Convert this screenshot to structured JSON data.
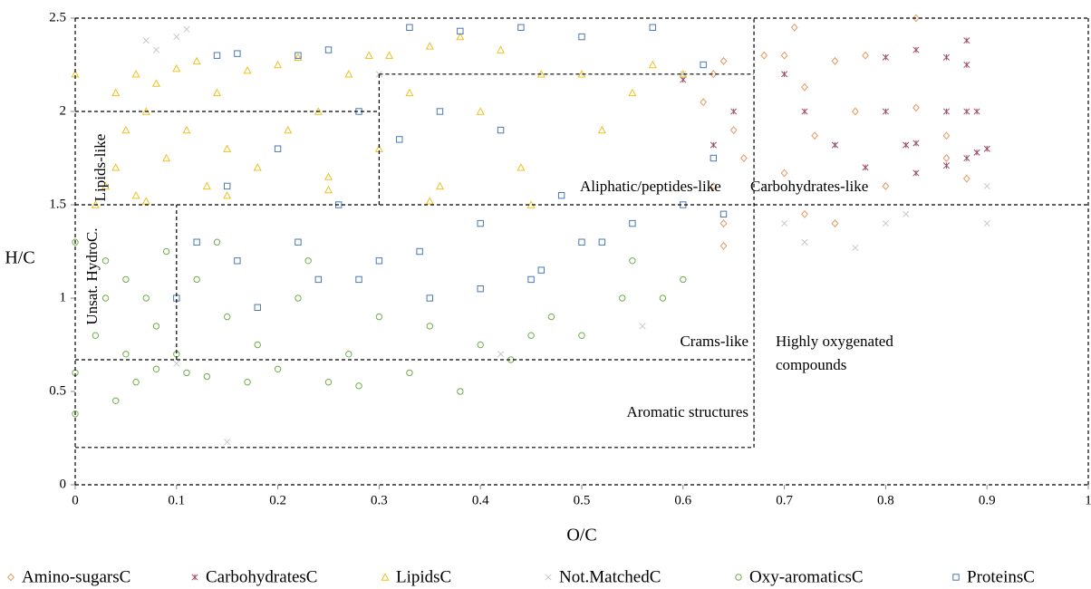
{
  "chart_data": {
    "type": "scatter",
    "xlabel": "O/C",
    "ylabel": "H/C",
    "xlim": [
      0,
      1
    ],
    "ylim": [
      0,
      2.5
    ],
    "xticks": [
      0,
      0.1,
      0.2,
      0.3,
      0.4,
      0.5,
      0.6,
      0.7,
      0.8,
      0.9,
      1
    ],
    "yticks": [
      0,
      0.5,
      1,
      1.5,
      2,
      2.5
    ],
    "region_lines": [
      [
        0,
        0,
        1,
        0
      ],
      [
        0,
        2.5,
        1,
        2.5
      ],
      [
        0,
        0,
        0,
        2.5
      ],
      [
        1,
        0,
        1,
        2.5
      ],
      [
        0,
        1.5,
        1,
        1.5
      ],
      [
        0,
        2,
        0.3,
        2
      ],
      [
        0.3,
        2.2,
        0.67,
        2.2
      ],
      [
        0.3,
        1.5,
        0.3,
        2.2
      ],
      [
        0.67,
        0.2,
        0.67,
        2.5
      ],
      [
        0,
        0.67,
        0.67,
        0.67
      ],
      [
        0,
        0.2,
        0.67,
        0.2
      ],
      [
        0.1,
        0.67,
        0.1,
        1.5
      ]
    ],
    "annotations": [
      "Lipids-like",
      "Aliphatic/peptides-like",
      "Carbohydrates-like",
      "Unsat. HydroC.",
      "Crams-like",
      "Highly oxygenated",
      "compounds",
      "Aromatic structures"
    ],
    "series": [
      {
        "name": "Amino-sugarsC",
        "color": "#e59a63",
        "marker": "diamond",
        "x": [
          0.63,
          0.64,
          0.62,
          0.65,
          0.63,
          0.64,
          0.66,
          0.68,
          0.7,
          0.71,
          0.72,
          0.73,
          0.75,
          0.77,
          0.78,
          0.8,
          0.83,
          0.83,
          0.86,
          0.86,
          0.88,
          0.72,
          0.75,
          0.64,
          0.7
        ],
        "values": [
          2.2,
          2.27,
          2.05,
          1.9,
          1.6,
          1.4,
          1.75,
          2.3,
          2.3,
          2.45,
          2.13,
          1.87,
          2.27,
          2.0,
          2.3,
          1.6,
          2.5,
          2.02,
          1.87,
          1.75,
          1.64,
          1.45,
          1.4,
          1.28,
          1.67
        ]
      },
      {
        "name": "CarbohydratesC",
        "color": "#9b4d6e",
        "marker": "star",
        "x": [
          0.63,
          0.65,
          0.7,
          0.72,
          0.75,
          0.78,
          0.8,
          0.8,
          0.82,
          0.83,
          0.83,
          0.86,
          0.86,
          0.86,
          0.88,
          0.88,
          0.88,
          0.88,
          0.89,
          0.89,
          0.9,
          0.83,
          0.6
        ],
        "values": [
          1.82,
          2.0,
          2.2,
          2.0,
          1.82,
          1.7,
          2.29,
          2.0,
          1.82,
          2.33,
          1.83,
          2.29,
          2.0,
          1.71,
          2.38,
          2.25,
          2.0,
          1.75,
          2.0,
          1.78,
          1.8,
          1.67,
          2.17
        ]
      },
      {
        "name": "LipidsC",
        "color": "#f0c020",
        "marker": "triangle",
        "x": [
          0,
          0.02,
          0.03,
          0.04,
          0.04,
          0.05,
          0.06,
          0.06,
          0.07,
          0.08,
          0.09,
          0.1,
          0.11,
          0.12,
          0.13,
          0.14,
          0.15,
          0.17,
          0.18,
          0.2,
          0.21,
          0.22,
          0.24,
          0.25,
          0.27,
          0.29,
          0.3,
          0.31,
          0.33,
          0.35,
          0.36,
          0.38,
          0.4,
          0.42,
          0.44,
          0.46,
          0.5,
          0.52,
          0.55,
          0.57,
          0.6,
          0.07,
          0.15,
          0.25,
          0.35,
          0.45
        ],
        "values": [
          2.2,
          1.5,
          1.6,
          1.7,
          2.1,
          1.9,
          2.2,
          1.55,
          2.0,
          2.15,
          1.75,
          2.23,
          1.9,
          2.27,
          1.6,
          2.1,
          1.8,
          2.22,
          1.7,
          2.25,
          1.9,
          2.29,
          2.0,
          1.65,
          2.2,
          2.3,
          1.8,
          2.3,
          2.1,
          2.35,
          1.6,
          2.4,
          2.0,
          2.33,
          1.7,
          2.2,
          2.2,
          1.9,
          2.1,
          2.25,
          2.2,
          1.52,
          1.55,
          1.58,
          1.52,
          1.5
        ]
      },
      {
        "name": "Not.MatchedC",
        "color": "#c8c8c8",
        "marker": "cross",
        "x": [
          0.07,
          0.08,
          0.1,
          0.11,
          0.15,
          0.56,
          0.6,
          0.68,
          0.7,
          0.72,
          0.77,
          0.8,
          0.82,
          0.9,
          0.9,
          0.1,
          0.42,
          0.3
        ],
        "values": [
          2.38,
          2.33,
          2.4,
          2.44,
          0.23,
          0.85,
          2.2,
          1.6,
          1.4,
          1.3,
          1.27,
          1.4,
          1.45,
          1.4,
          1.6,
          0.65,
          0.7,
          2.2
        ]
      },
      {
        "name": "Oxy-aromaticsC",
        "color": "#70ad47",
        "marker": "circle",
        "x": [
          0,
          0,
          0,
          0.02,
          0.03,
          0.04,
          0.05,
          0.05,
          0.06,
          0.07,
          0.08,
          0.09,
          0.1,
          0.11,
          0.12,
          0.13,
          0.15,
          0.17,
          0.18,
          0.2,
          0.22,
          0.25,
          0.27,
          0.28,
          0.3,
          0.33,
          0.35,
          0.38,
          0.4,
          0.43,
          0.45,
          0.47,
          0.5,
          0.54,
          0.55,
          0.58,
          0.6,
          0.03,
          0.08,
          0.14,
          0.23
        ],
        "values": [
          0.38,
          0.6,
          1.3,
          0.8,
          1.2,
          0.45,
          0.7,
          1.1,
          0.55,
          1.0,
          0.62,
          1.25,
          0.7,
          0.6,
          1.1,
          0.58,
          0.9,
          0.55,
          0.75,
          0.62,
          1.0,
          0.55,
          0.7,
          0.53,
          0.9,
          0.6,
          0.85,
          0.5,
          0.75,
          0.67,
          0.8,
          0.9,
          0.8,
          1.0,
          1.2,
          1.0,
          1.1,
          1.0,
          0.85,
          1.3,
          1.2
        ]
      },
      {
        "name": "ProteinsC",
        "color": "#4a78b0",
        "marker": "square",
        "x": [
          0.1,
          0.12,
          0.14,
          0.15,
          0.16,
          0.18,
          0.2,
          0.22,
          0.24,
          0.25,
          0.26,
          0.28,
          0.3,
          0.32,
          0.33,
          0.35,
          0.36,
          0.38,
          0.4,
          0.42,
          0.44,
          0.45,
          0.48,
          0.5,
          0.52,
          0.55,
          0.57,
          0.6,
          0.62,
          0.63,
          0.64,
          0.16,
          0.22,
          0.28,
          0.34,
          0.4,
          0.46,
          0.5
        ],
        "values": [
          1.0,
          1.3,
          2.3,
          1.6,
          2.31,
          0.95,
          1.8,
          2.3,
          1.1,
          2.33,
          1.5,
          2.0,
          1.2,
          1.85,
          2.45,
          1.0,
          2.0,
          2.43,
          1.4,
          1.9,
          2.45,
          1.1,
          1.55,
          2.4,
          1.3,
          1.4,
          2.45,
          1.5,
          2.25,
          1.75,
          1.45,
          1.2,
          1.3,
          1.1,
          1.25,
          1.05,
          1.15,
          1.3
        ]
      }
    ]
  }
}
